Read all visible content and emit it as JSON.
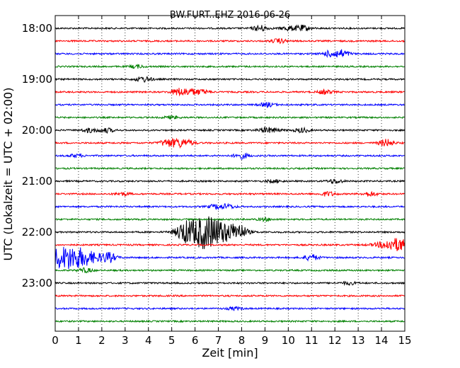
{
  "chart_data": {
    "type": "line",
    "title": "BW.FURT..EHZ 2016-06-26",
    "xlabel": "Zeit  [min]",
    "ylabel": "UTC (Lokalzeit = UTC + 02:00)",
    "xlim": [
      0,
      15
    ],
    "x_ticks": [
      "0",
      "1",
      "2",
      "3",
      "4",
      "5",
      "6",
      "7",
      "8",
      "9",
      "10",
      "11",
      "12",
      "13",
      "14",
      "15"
    ],
    "y_ticks": [
      "18:00",
      "19:00",
      "20:00",
      "21:00",
      "22:00",
      "23:00"
    ],
    "trace_interval_minutes": 15,
    "grid": "vertical dotted",
    "trace_colors": [
      "#000000",
      "#ff0000",
      "#0000ff",
      "#008000"
    ],
    "traces": [
      {
        "start": "18:00",
        "color": "#000000",
        "events": [
          {
            "t": 8.8,
            "amp": 4
          },
          {
            "t": 10.0,
            "amp": 3
          },
          {
            "t": 10.6,
            "amp": 4
          }
        ]
      },
      {
        "start": "18:15",
        "color": "#ff0000",
        "events": [
          {
            "t": 9.6,
            "amp": 3
          }
        ]
      },
      {
        "start": "18:30",
        "color": "#0000ff",
        "events": [
          {
            "t": 11.8,
            "amp": 4
          },
          {
            "t": 12.3,
            "amp": 5
          }
        ]
      },
      {
        "start": "18:45",
        "color": "#008000",
        "events": [
          {
            "t": 3.5,
            "amp": 2
          }
        ]
      },
      {
        "start": "19:00",
        "color": "#000000",
        "events": [
          {
            "t": 3.7,
            "amp": 2
          },
          {
            "t": 3.9,
            "amp": 2
          }
        ]
      },
      {
        "start": "19:15",
        "color": "#ff0000",
        "events": [
          {
            "t": 5.3,
            "amp": 5
          },
          {
            "t": 5.8,
            "amp": 4
          },
          {
            "t": 6.3,
            "amp": 3
          },
          {
            "t": 11.6,
            "amp": 3
          }
        ]
      },
      {
        "start": "19:30",
        "color": "#0000ff",
        "events": [
          {
            "t": 9.1,
            "amp": 3
          }
        ]
      },
      {
        "start": "19:45",
        "color": "#008000",
        "events": [
          {
            "t": 5.0,
            "amp": 2
          }
        ]
      },
      {
        "start": "20:00",
        "color": "#000000",
        "events": [
          {
            "t": 1.5,
            "amp": 3
          },
          {
            "t": 2.2,
            "amp": 3
          },
          {
            "t": 9.0,
            "amp": 3
          },
          {
            "t": 9.4,
            "amp": 2
          },
          {
            "t": 10.6,
            "amp": 3
          }
        ]
      },
      {
        "start": "20:15",
        "color": "#ff0000",
        "events": [
          {
            "t": 4.8,
            "amp": 5
          },
          {
            "t": 5.3,
            "amp": 5
          },
          {
            "t": 5.7,
            "amp": 3
          },
          {
            "t": 14.2,
            "amp": 5
          }
        ]
      },
      {
        "start": "20:30",
        "color": "#0000ff",
        "events": [
          {
            "t": 0.9,
            "amp": 2
          },
          {
            "t": 8.0,
            "amp": 4
          }
        ]
      },
      {
        "start": "20:45",
        "color": "#008000",
        "events": []
      },
      {
        "start": "21:00",
        "color": "#000000",
        "events": [
          {
            "t": 9.4,
            "amp": 2
          },
          {
            "t": 12.0,
            "amp": 3
          }
        ]
      },
      {
        "start": "21:15",
        "color": "#ff0000",
        "events": [
          {
            "t": 2.9,
            "amp": 2
          },
          {
            "t": 11.7,
            "amp": 3
          },
          {
            "t": 13.5,
            "amp": 3
          }
        ]
      },
      {
        "start": "21:30",
        "color": "#0000ff",
        "events": [
          {
            "t": 6.9,
            "amp": 3
          },
          {
            "t": 7.4,
            "amp": 3
          }
        ]
      },
      {
        "start": "21:45",
        "color": "#008000",
        "events": [
          {
            "t": 9.0,
            "amp": 2
          }
        ]
      },
      {
        "start": "22:00",
        "color": "#000000",
        "events": [
          {
            "t": 5.5,
            "amp": 8
          },
          {
            "t": 6.3,
            "amp": 20
          },
          {
            "t": 7.2,
            "amp": 10
          },
          {
            "t": 7.9,
            "amp": 7
          }
        ]
      },
      {
        "start": "22:15",
        "color": "#ff0000",
        "events": [
          {
            "t": 14.7,
            "amp": 9
          }
        ]
      },
      {
        "start": "22:30",
        "color": "#0000ff",
        "events": [
          {
            "t": 0.3,
            "amp": 13
          },
          {
            "t": 1.2,
            "amp": 9
          },
          {
            "t": 2.3,
            "amp": 6
          },
          {
            "t": 11.0,
            "amp": 4
          }
        ]
      },
      {
        "start": "22:45",
        "color": "#008000",
        "events": [
          {
            "t": 1.3,
            "amp": 3
          }
        ]
      },
      {
        "start": "23:00",
        "color": "#000000",
        "events": [
          {
            "t": 12.6,
            "amp": 2
          }
        ]
      },
      {
        "start": "23:15",
        "color": "#ff0000",
        "events": []
      },
      {
        "start": "23:30",
        "color": "#0000ff",
        "events": [
          {
            "t": 7.7,
            "amp": 2
          }
        ]
      },
      {
        "start": "23:45",
        "color": "#008000",
        "events": []
      }
    ]
  }
}
